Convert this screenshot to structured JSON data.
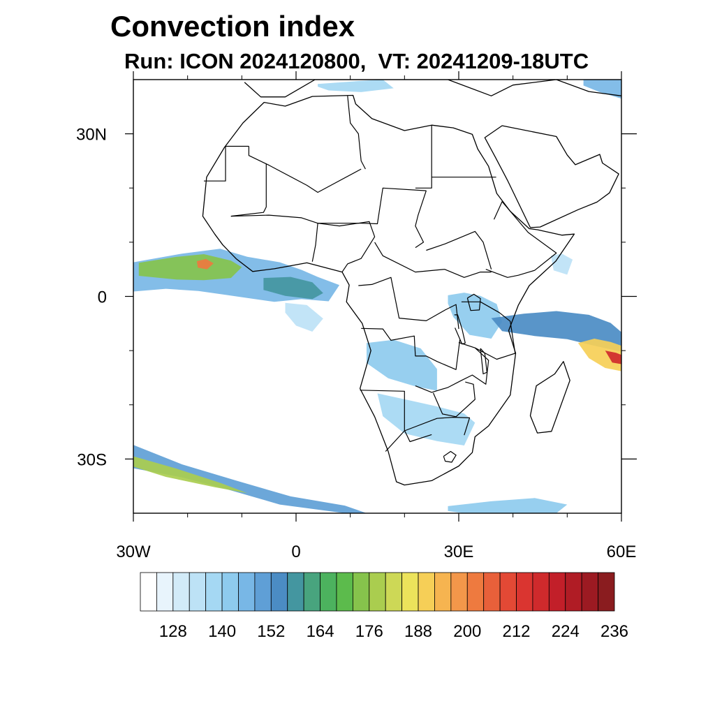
{
  "title": "Convection index",
  "subtitle": "Run: ICON 2024120800,  VT: 20241209-18UTC",
  "map": {
    "projection": "cylindrical equidistant",
    "lon_range": [
      -30,
      60
    ],
    "lat_range": [
      -40,
      40
    ],
    "x_tick_labels": [
      {
        "lon": -30,
        "label": "30W"
      },
      {
        "lon": 0,
        "label": "0"
      },
      {
        "lon": 30,
        "label": "30E"
      },
      {
        "lon": 60,
        "label": "60E"
      }
    ],
    "y_tick_labels": [
      {
        "lat": 30,
        "label": "30N"
      },
      {
        "lat": 0,
        "label": "0"
      },
      {
        "lat": -30,
        "label": "30S"
      }
    ],
    "minor_lon_ticks": [
      -20,
      -10,
      10,
      20,
      40,
      50
    ],
    "minor_lat_ticks": [
      20,
      10,
      -10,
      -20
    ]
  },
  "colorbar": {
    "colors": [
      "#ffffff",
      "#e8f4fc",
      "#d2ebf8",
      "#bde2f6",
      "#a5d8f3",
      "#8ecbee",
      "#78b7e6",
      "#5f9fd6",
      "#4b8cc4",
      "#4496a0",
      "#48a47e",
      "#4cb25e",
      "#5cbb4c",
      "#86c34c",
      "#aacd4f",
      "#cdd856",
      "#ece35b",
      "#f6cf57",
      "#f6b450",
      "#f3974a",
      "#ee7a3f",
      "#e8603a",
      "#e34935",
      "#da3530",
      "#cf2a2c",
      "#c21f29",
      "#b01c25",
      "#9c1a22",
      "#8a1c1f"
    ],
    "labels": [
      "128",
      "140",
      "152",
      "164",
      "176",
      "188",
      "200",
      "212",
      "224",
      "236"
    ],
    "label_after_box": [
      1,
      4,
      7,
      10,
      13,
      16,
      19,
      22,
      25,
      28
    ]
  },
  "fields": [
    {
      "name": "tropical-atlantic-band",
      "level": 6,
      "lon": [
        -30,
        -21,
        -14,
        -9,
        -3,
        1,
        4,
        8,
        6,
        1,
        -4,
        -9,
        -13,
        -18,
        -24,
        -30
      ],
      "lat": [
        6.3,
        7.9,
        8.8,
        7.3,
        6.3,
        4.9,
        3.6,
        2.1,
        -0.9,
        -0.5,
        -1.0,
        -0.3,
        0.3,
        1.0,
        1.4,
        0.9
      ]
    },
    {
      "name": "tropical-atlantic-core",
      "level": 13,
      "lon": [
        -29,
        -22,
        -17,
        -12,
        -10,
        -12,
        -17,
        -22,
        -29
      ],
      "lat": [
        6.2,
        7.3,
        7.8,
        6.6,
        5.4,
        3.4,
        3.0,
        3.1,
        3.8
      ]
    },
    {
      "name": "tropical-atlantic-peak",
      "level": 20,
      "lon": [
        -18.3,
        -16.6,
        -15.2,
        -16.4,
        -18.1
      ],
      "lat": [
        6.5,
        6.9,
        6.1,
        5.0,
        5.3
      ]
    },
    {
      "name": "gulf-of-guinea",
      "level": 9,
      "lon": [
        -6,
        -1,
        3,
        5,
        3,
        -2,
        -6
      ],
      "lat": [
        3.4,
        3.6,
        2.6,
        0.6,
        -0.5,
        0.1,
        1.2
      ]
    },
    {
      "name": "atlantic-tail",
      "level": 3,
      "lon": [
        -2,
        2,
        5,
        3,
        0,
        -2
      ],
      "lat": [
        -1.2,
        -1.6,
        -4.1,
        -6.5,
        -5.4,
        -3.0
      ]
    },
    {
      "name": "east-africa-lakes",
      "level": 5,
      "lon": [
        28,
        31,
        34,
        37,
        38,
        36,
        32,
        29,
        28
      ],
      "lat": [
        0.2,
        0.7,
        0.1,
        -1.4,
        -4.7,
        -7.8,
        -7.1,
        -3.8,
        -1.3
      ]
    },
    {
      "name": "indian-ocean-band",
      "level": 8,
      "lon": [
        36,
        42,
        48,
        54,
        58,
        60,
        60,
        55,
        50,
        44,
        38
      ],
      "lat": [
        -4.0,
        -3.2,
        -2.7,
        -3.4,
        -4.9,
        -6.6,
        -10.2,
        -9.1,
        -7.9,
        -7.3,
        -6.4
      ]
    },
    {
      "name": "indian-ocean-core",
      "level": 17,
      "lon": [
        52,
        55,
        58,
        60,
        60,
        57,
        54
      ],
      "lat": [
        -8.6,
        -7.8,
        -8.4,
        -9.1,
        -13.8,
        -13.2,
        -11.4
      ]
    },
    {
      "name": "indian-ocean-peak",
      "level": 24,
      "lon": [
        57,
        59,
        60,
        60,
        58.3
      ],
      "lat": [
        -10.0,
        -10.4,
        -10.8,
        -12.5,
        -12.2
      ]
    },
    {
      "name": "angola-zambia",
      "level": 5,
      "lon": [
        13,
        18,
        23,
        26,
        26,
        22,
        17,
        13
      ],
      "lat": [
        -8.6,
        -8.0,
        -9.6,
        -13.4,
        -17.4,
        -16.6,
        -15.1,
        -12.3
      ]
    },
    {
      "name": "botswana-mozambique",
      "level": 4,
      "lon": [
        15,
        21,
        26,
        31,
        33,
        31,
        26,
        20,
        16
      ],
      "lat": [
        -17.9,
        -19.2,
        -20.3,
        -21.6,
        -23.3,
        -27.5,
        -26.7,
        -25.3,
        -22.1
      ]
    },
    {
      "name": "southern-storm-track",
      "level": 7,
      "lon": [
        -30,
        -21,
        -11,
        -1,
        9,
        13,
        9,
        -3,
        -13,
        -21,
        -30
      ],
      "lat": [
        -27.4,
        -31.0,
        -34.0,
        -36.9,
        -38.6,
        -40.0,
        -40.0,
        -38.4,
        -35.5,
        -33.4,
        -31.7
      ]
    },
    {
      "name": "southern-storm-core",
      "level": 14,
      "lon": [
        -30,
        -22,
        -14,
        -9,
        -15,
        -24,
        -30
      ],
      "lat": [
        -29.5,
        -31.8,
        -34.4,
        -36.3,
        -35.2,
        -33.3,
        -31.4
      ]
    },
    {
      "name": "south-indian-ocean",
      "level": 5,
      "lon": [
        28,
        36,
        44,
        50,
        48,
        40,
        31,
        28
      ],
      "lat": [
        -38.7,
        -37.8,
        -37.2,
        -38.4,
        -40.0,
        -40.0,
        -40.0,
        -39.6
      ]
    },
    {
      "name": "mediterranean",
      "level": 4,
      "lon": [
        4,
        11,
        16,
        18,
        12,
        6,
        4
      ],
      "lat": [
        39.2,
        39.7,
        40.0,
        38.4,
        37.7,
        38.0,
        38.7
      ]
    },
    {
      "name": "northeast-corner",
      "level": 6,
      "lon": [
        53,
        57,
        60,
        60,
        56,
        53
      ],
      "lat": [
        40.0,
        40.0,
        40.0,
        36.5,
        37.7,
        38.9
      ]
    },
    {
      "name": "somali-coast",
      "level": 3,
      "lon": [
        47,
        49,
        51,
        50,
        47.5
      ],
      "lat": [
        7.5,
        7.9,
        6.8,
        4.0,
        4.8
      ]
    }
  ],
  "coastlines": [
    {
      "name": "africa-coastline",
      "lon": [
        -5.9,
        -9.8,
        -13.2,
        -16.5,
        -17.2,
        -15,
        -13.5,
        -11,
        -8,
        -4,
        2,
        8.5,
        9.8,
        9.3,
        12.2,
        13.8,
        11.8,
        14.5,
        17,
        18.5,
        20,
        25,
        30,
        32.5,
        33,
        35.5,
        39.5,
        40.5,
        39.2,
        41,
        43,
        47.9,
        51.3,
        49,
        44.5,
        43,
        39.5,
        37,
        35.5,
        33.5,
        32.5,
        29,
        25,
        20,
        14,
        11,
        10.5,
        3,
        -2,
        -5.9
      ],
      "lat": [
        35.8,
        32,
        27.5,
        22,
        14.8,
        11.5,
        9.5,
        6.9,
        4.6,
        5.1,
        6.2,
        4.5,
        2.1,
        -1,
        -5,
        -10,
        -17,
        -22.2,
        -28.6,
        -34.2,
        -34.8,
        -34.0,
        -31.3,
        -28.8,
        -25.9,
        -23.9,
        -18.2,
        -10.5,
        -6.3,
        -1.6,
        2,
        6.5,
        11.5,
        11.3,
        12.3,
        12.5,
        15.7,
        19,
        24,
        27.2,
        29.9,
        31.1,
        31.6,
        30.6,
        32.8,
        35.5,
        37.1,
        36.9,
        35.1,
        35.8
      ]
    },
    {
      "name": "madagascar",
      "lon": [
        49.3,
        50.5,
        47.1,
        44.5,
        43.2,
        44.3,
        47.7,
        49.3
      ],
      "lat": [
        -12,
        -15.5,
        -24.9,
        -25.2,
        -22,
        -16.5,
        -14.3,
        -12
      ]
    },
    {
      "name": "arabian-peninsula",
      "lon": [
        34.8,
        36.8,
        39,
        43.2,
        45,
        52,
        55.5,
        57.8,
        59.5,
        56.5,
        56,
        51.5,
        50,
        48,
        38,
        34.8
      ],
      "lat": [
        29.3,
        25.6,
        21.4,
        12.7,
        12.8,
        16,
        17.4,
        19.1,
        22.6,
        24.6,
        26.2,
        24.3,
        26.1,
        29.5,
        31.5,
        29.3
      ]
    },
    {
      "name": "iberia-europe-edge",
      "lon": [
        -9.5,
        -6.5,
        -2,
        3.5,
        9,
        14,
        19.5,
        23,
        28,
        36,
        40,
        48,
        54,
        60
      ],
      "lat": [
        39.5,
        36.8,
        36.8,
        40,
        40,
        40,
        40,
        40,
        40,
        37,
        39,
        40,
        37.8,
        37
      ]
    }
  ],
  "borders": [
    {
      "name": "border-algeria-libya",
      "lon": [
        9.5,
        10,
        11.5,
        12,
        12.8
      ],
      "lat": [
        37,
        32,
        30,
        25,
        23.5
      ]
    },
    {
      "name": "border-sahara-north",
      "lon": [
        -8.7,
        -8.7,
        -5,
        2,
        4,
        12
      ],
      "lat": [
        27.7,
        26,
        24.2,
        20.5,
        19.2,
        23.5
      ]
    },
    {
      "name": "border-western-sahara",
      "lon": [
        -17,
        -13,
        -13,
        -8.7
      ],
      "lat": [
        21.3,
        21.3,
        27.7,
        27.7
      ]
    },
    {
      "name": "border-mauritania-mali",
      "lon": [
        -12,
        -6,
        -5.5,
        -5.5
      ],
      "lat": [
        14.8,
        15.5,
        16.5,
        24.5
      ]
    },
    {
      "name": "border-libya-egypt",
      "lon": [
        25,
        25,
        25,
        22
      ],
      "lat": [
        31.5,
        22,
        20,
        20
      ]
    },
    {
      "name": "border-egypt-sudan",
      "lon": [
        25,
        36.9
      ],
      "lat": [
        22,
        22
      ]
    },
    {
      "name": "border-chad-sudan",
      "lon": [
        24,
        22.5,
        22,
        23.5,
        22
      ],
      "lat": [
        19.5,
        15,
        13,
        10,
        9
      ]
    },
    {
      "name": "border-sahel",
      "lon": [
        -12,
        -5,
        1,
        4,
        12,
        15,
        16,
        24
      ],
      "lat": [
        14.8,
        15,
        14.5,
        13.5,
        13.5,
        13.4,
        20,
        19.5
      ]
    },
    {
      "name": "border-nigeria",
      "lon": [
        3,
        3.6,
        4,
        8,
        13.5,
        14.5,
        12,
        9.5,
        8.5
      ],
      "lat": [
        6.4,
        9.5,
        13.5,
        13,
        13.8,
        11,
        7,
        6,
        4.5
      ]
    },
    {
      "name": "border-cameroon-car",
      "lon": [
        14.5,
        16,
        22,
        27.4,
        31,
        34,
        36
      ],
      "lat": [
        10,
        7.5,
        4.5,
        5,
        3.5,
        4.5,
        4.5
      ]
    },
    {
      "name": "border-south-sudan",
      "lon": [
        24,
        27.5,
        33,
        34.5,
        36
      ],
      "lat": [
        8.5,
        9.7,
        12,
        10,
        5
      ]
    },
    {
      "name": "border-ethiopia",
      "lon": [
        36.5,
        38,
        42.8,
        48,
        44,
        41,
        39,
        35
      ],
      "lat": [
        14.2,
        17.5,
        11.8,
        8,
        4.8,
        3.9,
        3.5,
        5
      ]
    },
    {
      "name": "border-congo-basin",
      "lon": [
        11.5,
        14,
        17.5,
        19,
        24,
        27.5,
        29.5,
        30
      ],
      "lat": [
        2,
        2.2,
        3.5,
        -4,
        -4.5,
        -2.5,
        -1.5,
        -6
      ]
    },
    {
      "name": "border-drc-angola",
      "lon": [
        12,
        16,
        17.5,
        21.8,
        22,
        24,
        26,
        29.5,
        30.2
      ],
      "lat": [
        -5.9,
        -6,
        -8.1,
        -7.3,
        -11,
        -11,
        -12,
        -13.5,
        -8
      ]
    },
    {
      "name": "border-tanzania",
      "lon": [
        30.5,
        34,
        37.5,
        39.5,
        40.4,
        37,
        33,
        30
      ],
      "lat": [
        -1,
        -1,
        -3,
        -4.6,
        -10.5,
        -11.6,
        -9.5,
        -8.5
      ]
    },
    {
      "name": "border-zambia-mozambique",
      "lon": [
        22,
        25,
        28,
        30.5,
        32.5,
        35,
        35.5,
        33
      ],
      "lat": [
        -16.5,
        -17.7,
        -16.8,
        -15.5,
        -14.5,
        -16.2,
        -11.8,
        -9.5
      ]
    },
    {
      "name": "border-namibia-botswana",
      "lon": [
        11.8,
        20,
        20,
        20,
        21,
        25
      ],
      "lat": [
        -17.3,
        -17.5,
        -22,
        -24.7,
        -26.8,
        -25.5
      ]
    },
    {
      "name": "border-south-africa",
      "lon": [
        16.5,
        20,
        26,
        29,
        32,
        31
      ],
      "lat": [
        -28.6,
        -24.8,
        -22.5,
        -22.3,
        -22.4,
        -25.6
      ]
    },
    {
      "name": "border-zimbabwe",
      "lon": [
        25.3,
        27,
        29.5,
        33,
        32.7,
        31.2
      ],
      "lat": [
        -17.8,
        -21.7,
        -22.2,
        -19,
        -16.2,
        -15.8
      ]
    },
    {
      "name": "lesotho",
      "lon": [
        27.2,
        28.5,
        29.5,
        28.7,
        27.5,
        27.2
      ],
      "lat": [
        -29.5,
        -28.6,
        -29.3,
        -30.6,
        -30.4,
        -29.5
      ]
    },
    {
      "name": "lake-victoria",
      "lon": [
        31.6,
        32.8,
        34,
        33.8,
        32.2,
        31.6
      ],
      "lat": [
        -0.3,
        0.4,
        -0.4,
        -2.5,
        -2.6,
        -0.3
      ]
    },
    {
      "name": "lake-tanganyika",
      "lon": [
        29.2,
        29.8,
        30.6,
        31.2,
        30.6,
        29.3
      ],
      "lat": [
        -3.4,
        -3.4,
        -6,
        -8.6,
        -8.8,
        -5.8
      ]
    },
    {
      "name": "lake-malawi",
      "lon": [
        34,
        34.8,
        35.2,
        34.5,
        34
      ],
      "lat": [
        -9.6,
        -10.5,
        -14,
        -14.3,
        -9.6
      ]
    }
  ]
}
